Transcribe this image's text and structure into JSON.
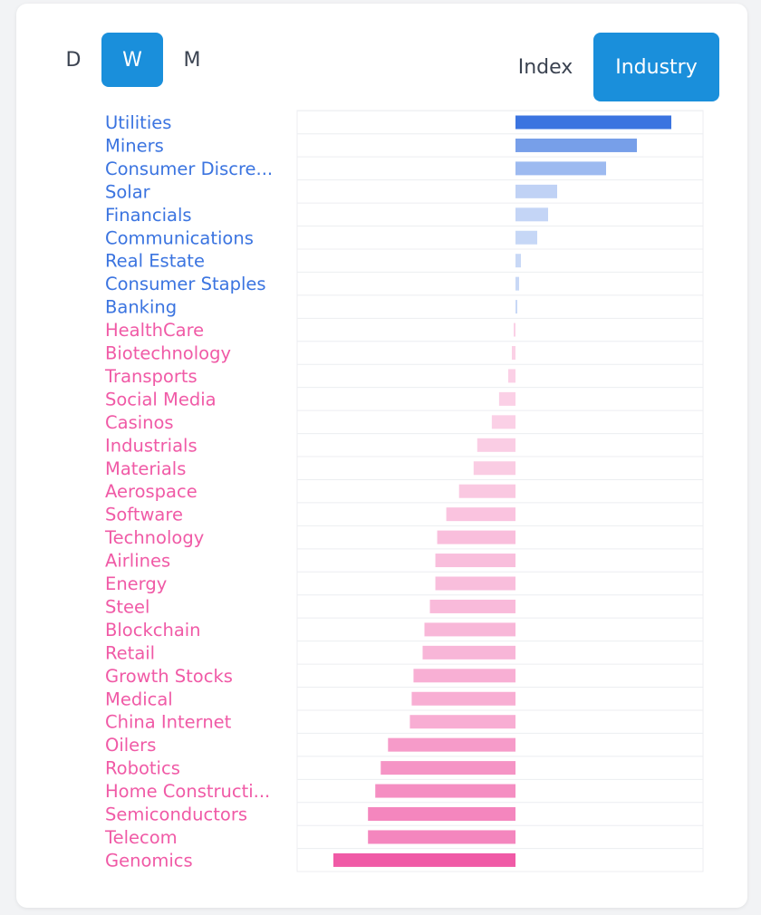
{
  "period_tabs": [
    "D",
    "W",
    "M"
  ],
  "period_active": "W",
  "mode_tabs": [
    "Index",
    "Industry"
  ],
  "mode_active": "Industry",
  "colors": {
    "positive": "#3b74e0",
    "negative": "#f05aa6",
    "active_button": "#1a8fdb"
  },
  "chart_data": {
    "type": "bar",
    "orientation": "horizontal",
    "title": "",
    "xlabel": "",
    "ylabel": "",
    "xlim": [
      -1.0,
      0.86
    ],
    "grid": true,
    "legend": "none",
    "categories": [
      "Utilities",
      "Miners",
      "Consumer Discre...",
      "Solar",
      "Financials",
      "Communications",
      "Real Estate",
      "Consumer Staples",
      "Banking",
      "HealthCare",
      "Biotechnology",
      "Transports",
      "Social Media",
      "Casinos",
      "Industrials",
      "Materials",
      "Aerospace",
      "Software",
      "Technology",
      "Airlines",
      "Energy",
      "Steel",
      "Blockchain",
      "Retail",
      "Growth Stocks",
      "Medical",
      "China Internet",
      "Oilers",
      "Robotics",
      "Home Constructi...",
      "Semiconductors",
      "Telecom",
      "Genomics"
    ],
    "values": [
      0.86,
      0.67,
      0.5,
      0.23,
      0.18,
      0.12,
      0.03,
      0.02,
      0.01,
      -0.01,
      -0.02,
      -0.04,
      -0.09,
      -0.13,
      -0.21,
      -0.23,
      -0.31,
      -0.38,
      -0.43,
      -0.44,
      -0.44,
      -0.47,
      -0.5,
      -0.51,
      -0.56,
      -0.57,
      -0.58,
      -0.7,
      -0.74,
      -0.77,
      -0.81,
      -0.81,
      -1.0
    ]
  }
}
